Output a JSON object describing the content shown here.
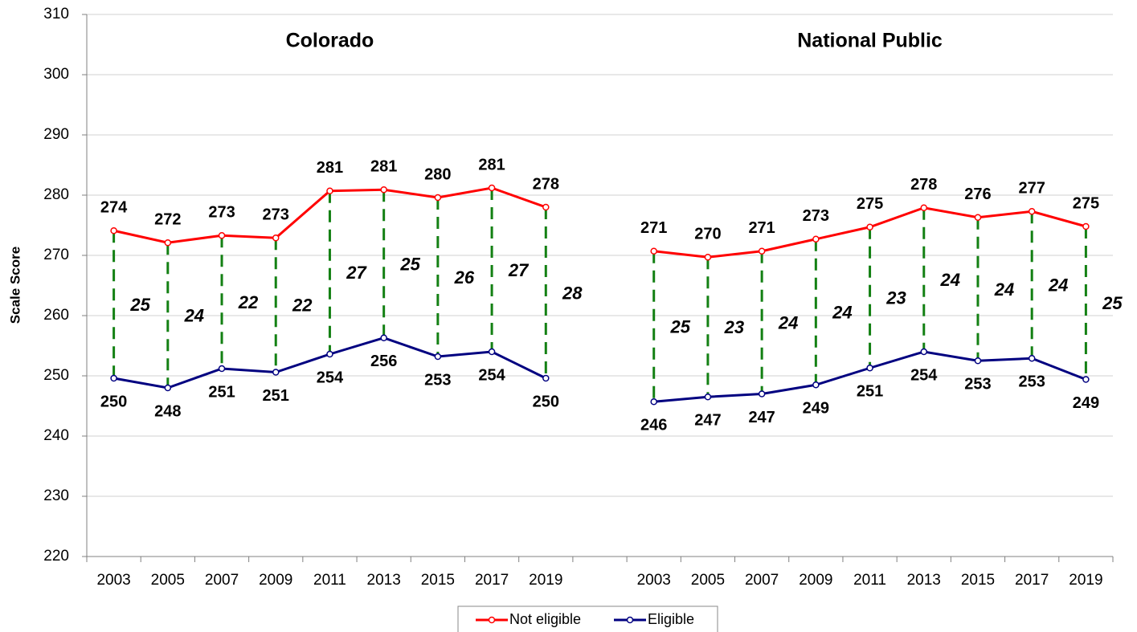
{
  "chart_data": {
    "type": "line",
    "panel_titles": [
      "Colorado",
      "National Public"
    ],
    "ylabel": "Scale Score",
    "categories": [
      "2003",
      "2005",
      "2007",
      "2009",
      "2011",
      "2013",
      "2015",
      "2017",
      "2019",
      null,
      "2003",
      "2005",
      "2007",
      "2009",
      "2011",
      "2013",
      "2015",
      "2017",
      "2019"
    ],
    "series": [
      {
        "name": "Not eligible",
        "color": "#ff0000",
        "values": [
          274.1,
          272.1,
          273.3,
          272.9,
          280.7,
          280.9,
          279.6,
          281.2,
          278.0,
          null,
          270.7,
          269.7,
          270.7,
          272.7,
          274.7,
          277.9,
          276.3,
          277.3,
          274.8
        ],
        "value_labels": [
          "274",
          "272",
          "273",
          "273",
          "281",
          "281",
          "280",
          "281",
          "278",
          null,
          "271",
          "270",
          "271",
          "273",
          "275",
          "278",
          "276",
          "277",
          "275"
        ]
      },
      {
        "name": "Eligible",
        "color": "#000080",
        "values": [
          249.6,
          248.0,
          251.2,
          250.6,
          253.6,
          256.3,
          253.2,
          254.0,
          249.6,
          null,
          245.7,
          246.5,
          247.0,
          248.5,
          251.3,
          254.0,
          252.5,
          252.9,
          249.4
        ],
        "value_labels": [
          "250",
          "248",
          "251",
          "251",
          "254",
          "256",
          "253",
          "254",
          "250",
          null,
          "246",
          "247",
          "247",
          "249",
          "251",
          "254",
          "253",
          "253",
          "249"
        ]
      }
    ],
    "gaps": [
      25,
      24,
      22,
      22,
      27,
      25,
      26,
      27,
      28,
      null,
      25,
      23,
      24,
      24,
      23,
      24,
      24,
      24,
      25
    ],
    "gap_color": "#138013",
    "ylim": [
      220,
      310
    ],
    "yticks": [
      220,
      230,
      240,
      250,
      260,
      270,
      280,
      290,
      300,
      310
    ],
    "grid": true,
    "legend": "bottom"
  }
}
